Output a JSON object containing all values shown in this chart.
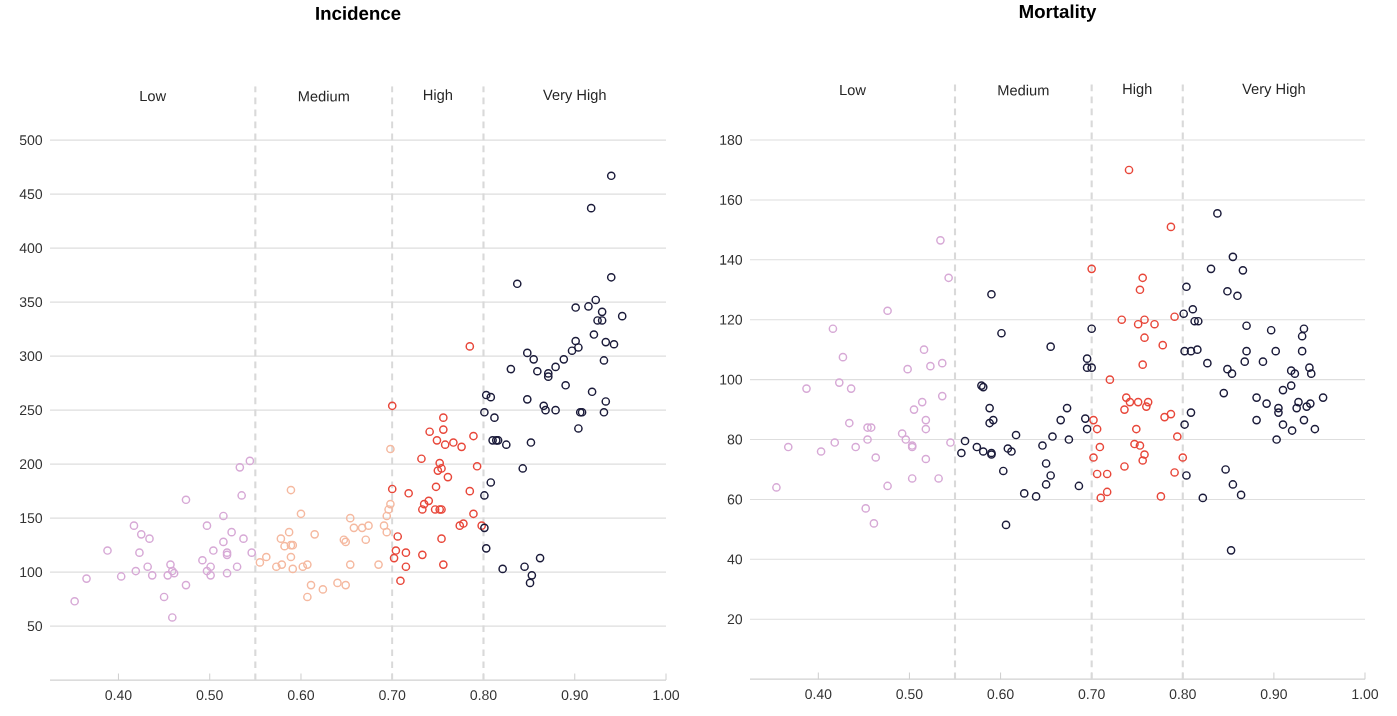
{
  "chart_data": [
    {
      "type": "scatter",
      "title": "Incidence",
      "marker": "circle",
      "grid": "y",
      "xlim": [
        0.325,
        1.0
      ],
      "ylim": [
        0,
        550
      ],
      "xticks": [
        {
          "value": 0.4,
          "label": "0.40"
        },
        {
          "value": 0.5,
          "label": "0.50"
        },
        {
          "value": 0.6,
          "label": "0.60"
        },
        {
          "value": 0.7,
          "label": "0.70"
        },
        {
          "value": 0.8,
          "label": "0.80"
        },
        {
          "value": 0.9,
          "label": "0.90"
        },
        {
          "value": 1.0,
          "label": "1.00"
        }
      ],
      "yticks": [
        50,
        100,
        150,
        200,
        250,
        300,
        350,
        400,
        450,
        500
      ],
      "ref_lines": [
        {
          "axis": "x",
          "value": 0.55,
          "color": "#d9d9d9",
          "line_style": "dashed"
        },
        {
          "axis": "x",
          "value": 0.7,
          "color": "#d9d9d9",
          "line_style": "dashed"
        },
        {
          "axis": "x",
          "value": 0.8,
          "color": "#d9d9d9",
          "line_style": "dashed"
        }
      ],
      "annotations": [
        "Low",
        "Medium",
        "High",
        "Very High"
      ],
      "series": [
        {
          "color": "#d7a9d6",
          "x": [
            0.352,
            0.365,
            0.388,
            0.403,
            0.417,
            0.425,
            0.434,
            0.423,
            0.419,
            0.432,
            0.437,
            0.457,
            0.454,
            0.461,
            0.459,
            0.45,
            0.459,
            0.474,
            0.474,
            0.492,
            0.497,
            0.497,
            0.501,
            0.501,
            0.504,
            0.515,
            0.515,
            0.524,
            0.519,
            0.519,
            0.519,
            0.53,
            0.537,
            0.535,
            0.533,
            0.544,
            0.546
          ],
          "values": [
            73,
            94,
            120,
            96,
            143,
            135,
            131,
            118,
            101,
            105,
            97,
            107,
            97,
            99,
            101,
            77,
            58,
            88,
            167,
            111,
            143,
            101,
            105,
            97,
            120,
            128,
            152,
            137,
            118,
            116,
            99,
            105,
            131,
            171,
            197,
            203,
            118
          ]
        },
        {
          "color": "#f5b9a0",
          "x": [
            0.589,
            0.6,
            0.587,
            0.578,
            0.582,
            0.589,
            0.591,
            0.589,
            0.555,
            0.562,
            0.573,
            0.579,
            0.591,
            0.602,
            0.607,
            0.615,
            0.611,
            0.624,
            0.607,
            0.64,
            0.649,
            0.647,
            0.649,
            0.654,
            0.658,
            0.654,
            0.667,
            0.674,
            0.671,
            0.685,
            0.691,
            0.694,
            0.694,
            0.696,
            0.698,
            0.698
          ],
          "values": [
            176,
            154,
            137,
            131,
            124,
            125,
            125,
            114,
            109,
            114,
            105,
            107,
            103,
            105,
            107,
            135,
            88,
            84,
            77,
            90,
            88,
            130,
            128,
            150,
            141,
            107,
            141,
            143,
            130,
            107,
            143,
            137,
            152,
            158,
            163,
            214
          ]
        },
        {
          "color": "#e8473a",
          "x": [
            0.7,
            0.785,
            0.756,
            0.741,
            0.756,
            0.749,
            0.758,
            0.767,
            0.776,
            0.789,
            0.732,
            0.752,
            0.754,
            0.75,
            0.761,
            0.793,
            0.748,
            0.7,
            0.718,
            0.785,
            0.735,
            0.74,
            0.733,
            0.747,
            0.752,
            0.754,
            0.789,
            0.774,
            0.778,
            0.798,
            0.706,
            0.754,
            0.704,
            0.702,
            0.715,
            0.733,
            0.715,
            0.756,
            0.709
          ],
          "values": [
            254,
            309,
            243,
            230,
            232,
            222,
            218,
            220,
            216,
            226,
            205,
            201,
            196,
            194,
            188,
            198,
            179,
            177,
            173,
            175,
            163,
            166,
            158,
            158,
            158,
            158,
            154,
            143,
            145,
            143,
            133,
            131,
            120,
            113,
            118,
            116,
            105,
            107,
            92
          ]
        },
        {
          "color": "#1b1b3a",
          "x": [
            0.94,
            0.918,
            0.94,
            0.837,
            0.901,
            0.915,
            0.923,
            0.93,
            0.925,
            0.93,
            0.952,
            0.921,
            0.901,
            0.934,
            0.943,
            0.897,
            0.904,
            0.848,
            0.855,
            0.888,
            0.879,
            0.83,
            0.859,
            0.871,
            0.871,
            0.89,
            0.932,
            0.919,
            0.803,
            0.808,
            0.848,
            0.866,
            0.868,
            0.879,
            0.906,
            0.908,
            0.934,
            0.932,
            0.904,
            0.801,
            0.812,
            0.81,
            0.814,
            0.816,
            0.825,
            0.852,
            0.843,
            0.808,
            0.801,
            0.801,
            0.803,
            0.821,
            0.845,
            0.853,
            0.851,
            0.862
          ],
          "values": [
            467,
            437,
            373,
            367,
            345,
            346,
            352,
            341,
            333,
            333,
            337,
            320,
            314,
            313,
            311,
            305,
            308,
            303,
            297,
            297,
            290,
            288,
            286,
            284,
            281,
            273,
            296,
            267,
            264,
            262,
            260,
            254,
            250,
            250,
            248,
            248,
            258,
            248,
            233,
            248,
            243,
            222,
            222,
            222,
            218,
            220,
            196,
            183,
            171,
            141,
            122,
            103,
            105,
            97,
            90,
            113
          ]
        }
      ]
    },
    {
      "type": "scatter",
      "title": "Mortality",
      "marker": "circle",
      "grid": "y",
      "xlim": [
        0.325,
        1.0
      ],
      "ylim": [
        0,
        200
      ],
      "xticks": [
        {
          "value": 0.4,
          "label": "0.40"
        },
        {
          "value": 0.5,
          "label": "0.50"
        },
        {
          "value": 0.6,
          "label": "0.60"
        },
        {
          "value": 0.7,
          "label": "0.70"
        },
        {
          "value": 0.8,
          "label": "0.80"
        },
        {
          "value": 0.9,
          "label": "0.90"
        },
        {
          "value": 1.0,
          "label": "1.00"
        }
      ],
      "yticks": [
        20,
        40,
        60,
        80,
        100,
        120,
        140,
        160,
        180
      ],
      "ref_lines": [
        {
          "axis": "x",
          "value": 0.55,
          "color": "#d9d9d9",
          "line_style": "dashed"
        },
        {
          "axis": "x",
          "value": 0.7,
          "color": "#d9d9d9",
          "line_style": "dashed"
        },
        {
          "axis": "x",
          "value": 0.8,
          "color": "#d9d9d9",
          "line_style": "dashed"
        }
      ],
      "annotations": [
        "Low",
        "Medium",
        "High",
        "Very High"
      ],
      "series": [
        {
          "color": "#d7a9d6",
          "x": [
            0.354,
            0.367,
            0.387,
            0.403,
            0.416,
            0.418,
            0.423,
            0.427,
            0.434,
            0.436,
            0.441,
            0.452,
            0.454,
            0.458,
            0.454,
            0.461,
            0.463,
            0.476,
            0.476,
            0.492,
            0.496,
            0.498,
            0.503,
            0.503,
            0.503,
            0.505,
            0.514,
            0.516,
            0.518,
            0.518,
            0.518,
            0.523,
            0.532,
            0.534,
            0.536,
            0.536,
            0.543,
            0.545
          ],
          "values": [
            64,
            77.5,
            97,
            76,
            117,
            79,
            99,
            107.5,
            85.5,
            97,
            77.5,
            57,
            84,
            84,
            80,
            52,
            74,
            123,
            64.5,
            82,
            80,
            103.5,
            78,
            77.5,
            67,
            90,
            92.5,
            110,
            86.5,
            83.5,
            73.5,
            104.5,
            67,
            146.5,
            105.5,
            94.5,
            134,
            79
          ]
        },
        {
          "color": "#e8473a",
          "x": [
            0.741,
            0.787,
            0.7,
            0.756,
            0.753,
            0.733,
            0.751,
            0.758,
            0.769,
            0.791,
            0.758,
            0.778,
            0.756,
            0.72,
            0.738,
            0.742,
            0.751,
            0.762,
            0.76,
            0.736,
            0.78,
            0.787,
            0.702,
            0.706,
            0.749,
            0.794,
            0.709,
            0.747,
            0.753,
            0.758,
            0.756,
            0.702,
            0.8,
            0.736,
            0.706,
            0.717,
            0.791,
            0.717,
            0.71,
            0.776
          ],
          "values": [
            170,
            151,
            137,
            134,
            130,
            120,
            118.5,
            120,
            118.5,
            121,
            114,
            111.5,
            105,
            100,
            94,
            92.5,
            92.5,
            92.5,
            91,
            90,
            87.5,
            88.5,
            86.5,
            83.5,
            83.5,
            81,
            77.5,
            78.5,
            78,
            75,
            73,
            74,
            74,
            71,
            68.5,
            68.5,
            69,
            62.5,
            60.5,
            61
          ]
        },
        {
          "color": "#1b1b3a",
          "x": [
            0.59,
            0.601,
            0.579,
            0.581,
            0.588,
            0.588,
            0.592,
            0.557,
            0.561,
            0.574,
            0.581,
            0.59,
            0.59,
            0.608,
            0.612,
            0.617,
            0.603,
            0.626,
            0.606,
            0.639,
            0.646,
            0.65,
            0.655,
            0.65,
            0.657,
            0.666,
            0.673,
            0.675,
            0.686,
            0.693,
            0.695,
            0.695,
            0.695,
            0.7,
            0.7,
            0.655,
            0.802,
            0.809,
            0.804,
            0.822,
            0.853,
            0.847,
            0.855,
            0.864,
            0.838,
            0.855,
            0.831,
            0.866,
            0.804,
            0.849,
            0.86,
            0.811,
            0.801,
            0.813,
            0.817,
            0.87,
            0.897,
            0.933,
            0.931,
            0.802,
            0.809,
            0.816,
            0.87,
            0.902,
            0.931,
            0.827,
            0.868,
            0.888,
            0.849,
            0.854,
            0.919,
            0.923,
            0.939,
            0.941,
            0.919,
            0.91,
            0.845,
            0.881,
            0.892,
            0.905,
            0.905,
            0.927,
            0.925,
            0.936,
            0.94,
            0.954,
            0.881,
            0.91,
            0.933,
            0.92,
            0.945,
            0.903
          ],
          "values": [
            128.5,
            115.5,
            98,
            97.5,
            90.5,
            85.5,
            86.5,
            75.5,
            79.5,
            77.5,
            76,
            75.5,
            75,
            77,
            76,
            81.5,
            69.5,
            62,
            51.5,
            61,
            78,
            72,
            68,
            65,
            81,
            86.5,
            90.5,
            80,
            64.5,
            87,
            83.5,
            107,
            104,
            104,
            117,
            111,
            85,
            89,
            68,
            60.5,
            43,
            70,
            65,
            61.5,
            155.5,
            141,
            137,
            136.5,
            131,
            129.5,
            128,
            123.5,
            122,
            119.5,
            119.5,
            118,
            116.5,
            117,
            114.5,
            109.5,
            109.5,
            110,
            109.5,
            109.5,
            109.5,
            105.5,
            106,
            106,
            103.5,
            102,
            103,
            102,
            104,
            102,
            98,
            96.5,
            95.5,
            94,
            92,
            90.5,
            89,
            92.5,
            90.5,
            91,
            92,
            94,
            86.5,
            85,
            86.5,
            83,
            83.5,
            80
          ]
        }
      ]
    }
  ]
}
